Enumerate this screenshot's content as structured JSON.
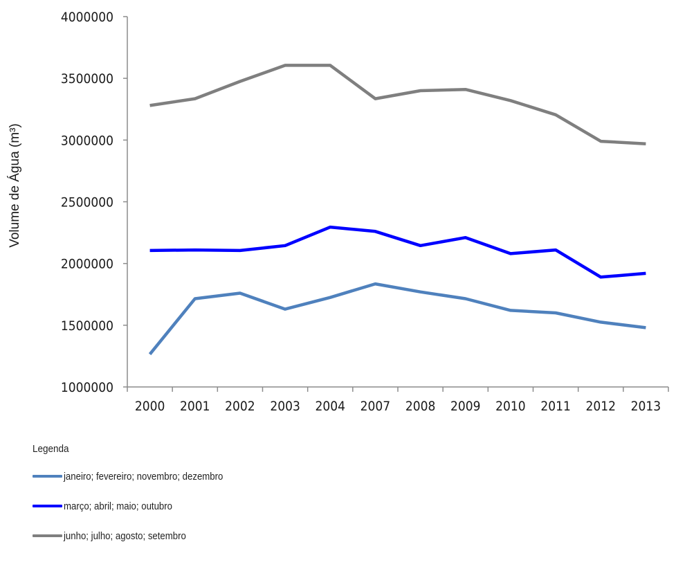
{
  "chart_data": {
    "type": "line",
    "title": "",
    "xlabel": "",
    "ylabel": "Volume de Água (m³)",
    "categories": [
      "2000",
      "2001",
      "2002",
      "2003",
      "2004",
      "2007",
      "2008",
      "2009",
      "2010",
      "2011",
      "2012",
      "2013"
    ],
    "ylim": [
      1000000,
      4000000
    ],
    "yticks": [
      "4000000",
      "3500000",
      "3000000",
      "2500000",
      "2000000",
      "1500000",
      "1000000"
    ],
    "ytick_values": [
      4000000,
      3500000,
      3000000,
      2500000,
      2000000,
      1500000,
      1000000
    ],
    "grid": false,
    "legend_position": "bottom-left",
    "legend_title": "Legenda",
    "series": [
      {
        "name": "janeiro; fevereiro; novembro; dezembro",
        "color": "#4f81bd",
        "values": [
          1265000,
          1715000,
          1760000,
          1630000,
          1725000,
          1835000,
          1770000,
          1715000,
          1620000,
          1600000,
          1525000,
          1480000
        ]
      },
      {
        "name": "março; abril; maio; outubro",
        "color": "#0000ff",
        "values": [
          2105000,
          2110000,
          2105000,
          2145000,
          2295000,
          2260000,
          2145000,
          2210000,
          2080000,
          2110000,
          1890000,
          1920000
        ]
      },
      {
        "name": "junho; julho; agosto; setembro",
        "color": "#7f7f7f",
        "values": [
          3280000,
          3335000,
          3475000,
          3605000,
          3605000,
          3335000,
          3400000,
          3410000,
          3320000,
          3205000,
          2990000,
          2970000
        ]
      }
    ]
  }
}
